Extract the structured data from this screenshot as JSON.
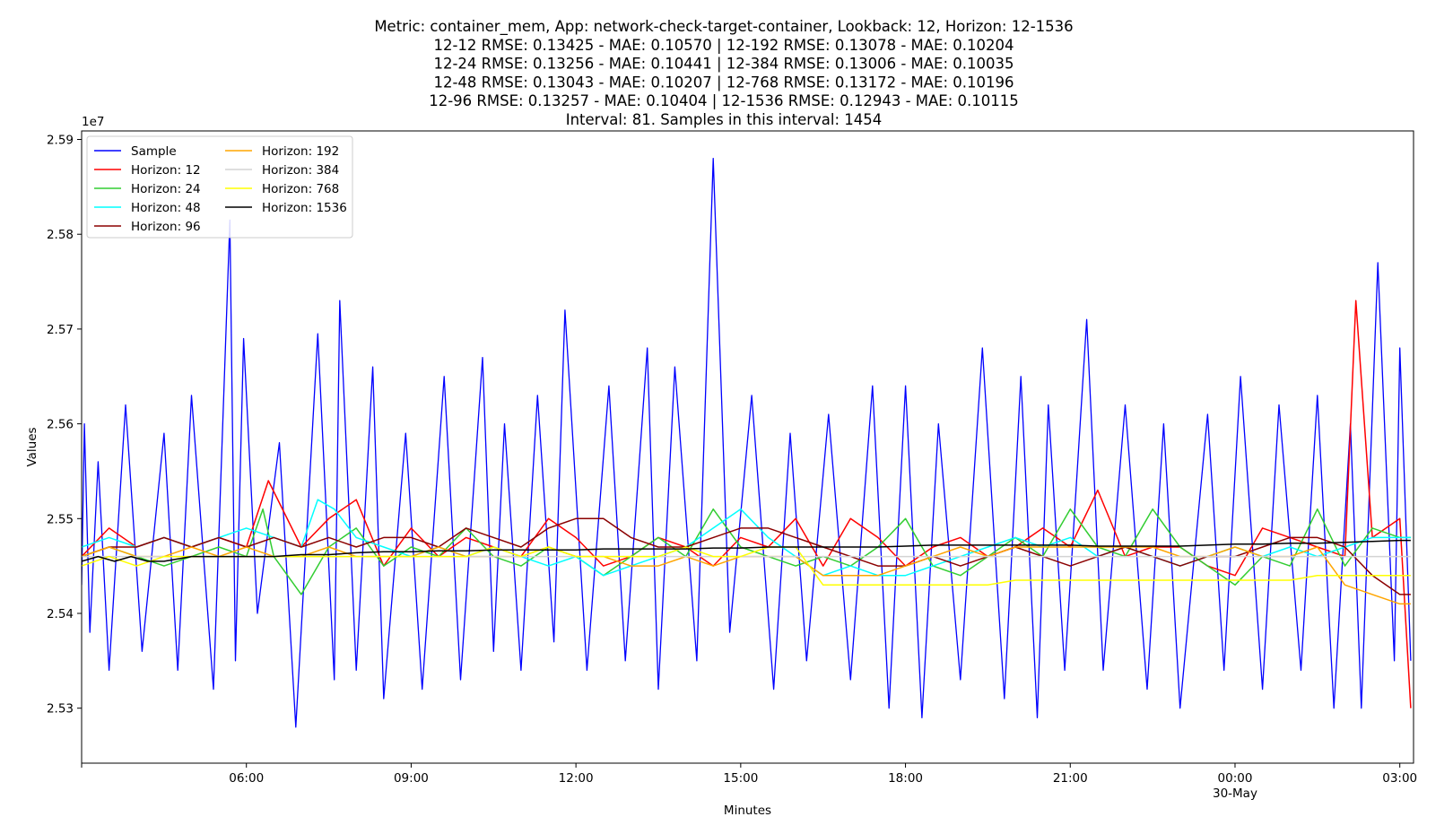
{
  "chart_data": {
    "type": "line",
    "title_lines": [
      "Metric: container_mem, App: network-check-target-container, Lookback: 12, Horizon: 12-1536",
      "12-12 RMSE: 0.13425 - MAE: 0.10570 | 12-192 RMSE: 0.13078 - MAE: 0.10204",
      "12-24 RMSE: 0.13256 - MAE: 0.10441 | 12-384 RMSE: 0.13006 - MAE: 0.10035",
      "12-48 RMSE: 0.13043 - MAE: 0.10207 | 12-768 RMSE: 0.13172 - MAE: 0.10196",
      "12-96 RMSE: 0.13257 - MAE: 0.10404 | 12-1536 RMSE: 0.12943 - MAE: 0.10115",
      "Interval: 81. Samples in this interval: 1454"
    ],
    "xlabel": "Minutes",
    "ylabel": "Values",
    "y_offset_label": "1e7",
    "x_unit": "hours since 2024-05-29 00:00 (dates axis)",
    "xlim": [
      3.0,
      27.25
    ],
    "ylim": [
      2.5242,
      2.5909
    ],
    "grid": false,
    "legend_position": "upper-left",
    "x_ticks": [
      {
        "value": 3.0,
        "label": ""
      },
      {
        "value": 6.0,
        "label": "06:00"
      },
      {
        "value": 9.0,
        "label": "09:00"
      },
      {
        "value": 12.0,
        "label": "12:00"
      },
      {
        "value": 15.0,
        "label": "15:00"
      },
      {
        "value": 18.0,
        "label": "18:00"
      },
      {
        "value": 21.0,
        "label": "21:00"
      },
      {
        "value": 24.0,
        "label": "00:00"
      },
      {
        "value": 27.0,
        "label": "03:00"
      }
    ],
    "x_date_label": {
      "value": 24.0,
      "label": "30-May"
    },
    "y_ticks": [
      {
        "value": 2.53,
        "label": "2.53"
      },
      {
        "value": 2.54,
        "label": "2.54"
      },
      {
        "value": 2.55,
        "label": "2.55"
      },
      {
        "value": 2.56,
        "label": "2.56"
      },
      {
        "value": 2.57,
        "label": "2.57"
      },
      {
        "value": 2.58,
        "label": "2.58"
      },
      {
        "value": 2.59,
        "label": "2.59"
      }
    ],
    "series": [
      {
        "name": "Sample",
        "color": "#0000ff",
        "x": [
          3.0,
          3.05,
          3.15,
          3.3,
          3.5,
          3.8,
          4.1,
          4.5,
          4.75,
          5.0,
          5.4,
          5.7,
          5.8,
          5.95,
          6.2,
          6.6,
          6.9,
          7.3,
          7.6,
          7.7,
          8.0,
          8.3,
          8.5,
          8.9,
          9.2,
          9.6,
          9.9,
          10.3,
          10.5,
          10.7,
          11.0,
          11.3,
          11.6,
          11.8,
          12.2,
          12.6,
          12.9,
          13.3,
          13.5,
          13.8,
          14.2,
          14.5,
          14.8,
          15.2,
          15.6,
          15.9,
          16.2,
          16.6,
          17.0,
          17.4,
          17.7,
          18.0,
          18.3,
          18.6,
          19.0,
          19.4,
          19.8,
          20.1,
          20.4,
          20.6,
          20.9,
          21.3,
          21.6,
          22.0,
          22.4,
          22.7,
          23.0,
          23.5,
          23.8,
          24.1,
          24.5,
          24.8,
          25.2,
          25.5,
          25.8,
          26.1,
          26.3,
          26.6,
          26.9,
          27.0,
          27.2
        ],
        "y": [
          2.543,
          2.56,
          2.538,
          2.556,
          2.534,
          2.562,
          2.536,
          2.559,
          2.534,
          2.563,
          2.532,
          2.5815,
          2.535,
          2.569,
          2.54,
          2.558,
          2.528,
          2.5695,
          2.533,
          2.573,
          2.534,
          2.566,
          2.531,
          2.559,
          2.532,
          2.565,
          2.533,
          2.567,
          2.536,
          2.56,
          2.534,
          2.563,
          2.537,
          2.572,
          2.534,
          2.564,
          2.535,
          2.568,
          2.532,
          2.566,
          2.535,
          2.588,
          2.538,
          2.563,
          2.532,
          2.559,
          2.535,
          2.561,
          2.533,
          2.564,
          2.53,
          2.564,
          2.529,
          2.56,
          2.533,
          2.568,
          2.531,
          2.565,
          2.529,
          2.562,
          2.534,
          2.571,
          2.534,
          2.562,
          2.532,
          2.56,
          2.53,
          2.561,
          2.534,
          2.565,
          2.532,
          2.562,
          2.534,
          2.563,
          2.53,
          2.56,
          2.53,
          2.577,
          2.535,
          2.568,
          2.535
        ]
      },
      {
        "name": "Horizon: 12",
        "color": "#ff0000",
        "x": [
          3.0,
          3.5,
          4.0,
          4.5,
          5.0,
          5.5,
          6.0,
          6.4,
          7.0,
          7.5,
          8.0,
          8.5,
          9.0,
          9.5,
          10.0,
          10.5,
          11.0,
          11.5,
          12.0,
          12.5,
          13.0,
          13.5,
          14.0,
          14.5,
          15.0,
          15.5,
          16.0,
          16.5,
          17.0,
          17.5,
          18.0,
          18.5,
          19.0,
          19.5,
          20.0,
          20.5,
          21.0,
          21.5,
          22.0,
          22.5,
          23.0,
          23.5,
          24.0,
          24.5,
          25.0,
          25.5,
          26.0,
          26.2,
          26.5,
          27.0,
          27.2
        ],
        "y": [
          2.546,
          2.549,
          2.547,
          2.548,
          2.547,
          2.548,
          2.547,
          2.554,
          2.547,
          2.55,
          2.552,
          2.545,
          2.549,
          2.546,
          2.548,
          2.547,
          2.546,
          2.55,
          2.548,
          2.545,
          2.546,
          2.548,
          2.547,
          2.545,
          2.548,
          2.547,
          2.55,
          2.545,
          2.55,
          2.548,
          2.545,
          2.547,
          2.548,
          2.546,
          2.547,
          2.549,
          2.547,
          2.553,
          2.546,
          2.547,
          2.547,
          2.545,
          2.544,
          2.549,
          2.548,
          2.547,
          2.546,
          2.573,
          2.548,
          2.55,
          2.53
        ]
      },
      {
        "name": "Horizon: 24",
        "color": "#32cd32",
        "x": [
          3.0,
          3.5,
          4.0,
          4.5,
          5.0,
          5.5,
          6.0,
          6.3,
          6.5,
          7.0,
          7.5,
          8.0,
          8.5,
          9.0,
          9.5,
          10.0,
          10.5,
          11.0,
          11.5,
          12.0,
          12.5,
          13.0,
          13.5,
          14.0,
          14.5,
          15.0,
          15.5,
          16.0,
          16.5,
          17.0,
          17.5,
          18.0,
          18.5,
          19.0,
          19.5,
          20.0,
          20.5,
          21.0,
          21.5,
          22.0,
          22.5,
          23.0,
          23.5,
          24.0,
          24.5,
          25.0,
          25.5,
          26.0,
          26.5,
          27.0,
          27.2
        ],
        "y": [
          2.546,
          2.547,
          2.546,
          2.545,
          2.546,
          2.547,
          2.546,
          2.551,
          2.546,
          2.542,
          2.547,
          2.549,
          2.545,
          2.547,
          2.546,
          2.549,
          2.546,
          2.545,
          2.547,
          2.546,
          2.544,
          2.546,
          2.548,
          2.546,
          2.551,
          2.547,
          2.546,
          2.545,
          2.546,
          2.545,
          2.547,
          2.55,
          2.545,
          2.544,
          2.546,
          2.548,
          2.546,
          2.551,
          2.547,
          2.546,
          2.551,
          2.547,
          2.545,
          2.543,
          2.546,
          2.545,
          2.551,
          2.545,
          2.549,
          2.548,
          2.548
        ]
      },
      {
        "name": "Horizon: 48",
        "color": "#00ffff",
        "x": [
          3.0,
          3.5,
          4.0,
          4.5,
          5.0,
          5.5,
          6.0,
          6.5,
          7.0,
          7.3,
          7.6,
          8.0,
          8.5,
          9.0,
          9.5,
          10.0,
          10.5,
          11.0,
          11.5,
          12.0,
          12.5,
          13.0,
          13.5,
          14.0,
          14.5,
          15.0,
          15.5,
          16.0,
          16.5,
          17.0,
          17.5,
          18.0,
          18.5,
          19.0,
          19.5,
          20.0,
          20.5,
          21.0,
          21.5,
          22.0,
          22.5,
          23.0,
          23.5,
          24.0,
          24.5,
          25.0,
          25.5,
          26.0,
          26.5,
          27.0,
          27.2
        ],
        "y": [
          2.547,
          2.548,
          2.547,
          2.548,
          2.547,
          2.548,
          2.549,
          2.548,
          2.547,
          2.552,
          2.551,
          2.548,
          2.547,
          2.546,
          2.547,
          2.546,
          2.547,
          2.546,
          2.545,
          2.546,
          2.544,
          2.545,
          2.546,
          2.547,
          2.549,
          2.551,
          2.548,
          2.546,
          2.544,
          2.545,
          2.544,
          2.544,
          2.545,
          2.546,
          2.547,
          2.548,
          2.547,
          2.548,
          2.546,
          2.547,
          2.546,
          2.545,
          2.546,
          2.547,
          2.546,
          2.547,
          2.546,
          2.547,
          2.548,
          2.548,
          2.548
        ]
      },
      {
        "name": "Horizon: 96",
        "color": "#8b0000",
        "x": [
          3.0,
          3.5,
          4.0,
          4.5,
          5.0,
          5.5,
          6.0,
          6.5,
          7.0,
          7.5,
          8.0,
          8.5,
          9.0,
          9.5,
          10.0,
          10.5,
          11.0,
          11.5,
          12.0,
          12.5,
          13.0,
          13.5,
          14.0,
          14.5,
          15.0,
          15.5,
          16.0,
          16.5,
          17.0,
          17.5,
          18.0,
          18.5,
          19.0,
          19.5,
          20.0,
          20.5,
          21.0,
          21.5,
          22.0,
          22.5,
          23.0,
          23.5,
          24.0,
          24.5,
          25.0,
          25.5,
          26.0,
          26.5,
          27.0,
          27.2
        ],
        "y": [
          2.546,
          2.547,
          2.547,
          2.548,
          2.547,
          2.548,
          2.547,
          2.548,
          2.547,
          2.548,
          2.547,
          2.548,
          2.548,
          2.547,
          2.549,
          2.548,
          2.547,
          2.549,
          2.55,
          2.55,
          2.548,
          2.547,
          2.547,
          2.548,
          2.549,
          2.549,
          2.548,
          2.547,
          2.546,
          2.545,
          2.545,
          2.546,
          2.545,
          2.546,
          2.547,
          2.546,
          2.545,
          2.546,
          2.547,
          2.546,
          2.545,
          2.546,
          2.546,
          2.547,
          2.548,
          2.548,
          2.547,
          2.544,
          2.542,
          2.542
        ]
      },
      {
        "name": "Horizon: 192",
        "color": "#ffa500",
        "x": [
          3.0,
          3.5,
          4.0,
          4.5,
          5.0,
          5.5,
          6.0,
          6.5,
          7.0,
          7.5,
          8.0,
          8.5,
          9.0,
          9.5,
          10.0,
          10.5,
          11.0,
          11.5,
          12.0,
          12.5,
          13.0,
          13.5,
          14.0,
          14.5,
          15.0,
          15.5,
          16.0,
          16.5,
          17.0,
          17.5,
          18.0,
          18.5,
          19.0,
          19.5,
          20.0,
          20.5,
          21.0,
          21.5,
          22.0,
          22.5,
          23.0,
          23.5,
          24.0,
          24.5,
          25.0,
          25.5,
          26.0,
          26.5,
          27.0,
          27.2
        ],
        "y": [
          2.546,
          2.547,
          2.546,
          2.546,
          2.547,
          2.546,
          2.547,
          2.546,
          2.546,
          2.547,
          2.546,
          2.546,
          2.546,
          2.547,
          2.546,
          2.546,
          2.546,
          2.547,
          2.546,
          2.546,
          2.545,
          2.545,
          2.546,
          2.545,
          2.546,
          2.546,
          2.546,
          2.544,
          2.544,
          2.544,
          2.545,
          2.546,
          2.547,
          2.546,
          2.547,
          2.547,
          2.547,
          2.547,
          2.547,
          2.547,
          2.546,
          2.546,
          2.547,
          2.546,
          2.546,
          2.547,
          2.543,
          2.542,
          2.541,
          2.541
        ]
      },
      {
        "name": "Horizon: 384",
        "color": "#d3d3d3",
        "x": [
          3.0,
          3.5,
          4.0,
          4.5,
          5.0,
          5.5,
          6.0,
          6.5,
          7.0,
          7.5,
          8.0,
          8.5,
          9.0,
          9.5,
          10.0,
          10.5,
          11.0,
          11.5,
          12.0,
          12.5,
          13.0,
          13.5,
          14.0,
          14.5,
          15.0,
          15.5,
          16.0,
          16.5,
          17.0,
          17.5,
          18.0,
          18.5,
          19.0,
          19.5,
          20.0,
          20.5,
          21.0,
          21.5,
          22.0,
          22.5,
          23.0,
          23.5,
          24.0,
          24.5,
          25.0,
          25.5,
          26.0,
          26.5,
          27.0,
          27.2
        ],
        "y": [
          2.546,
          2.546,
          2.546,
          2.546,
          2.546,
          2.546,
          2.546,
          2.546,
          2.546,
          2.546,
          2.546,
          2.546,
          2.546,
          2.546,
          2.546,
          2.546,
          2.546,
          2.546,
          2.546,
          2.546,
          2.546,
          2.546,
          2.546,
          2.546,
          2.546,
          2.546,
          2.546,
          2.546,
          2.546,
          2.546,
          2.546,
          2.546,
          2.546,
          2.546,
          2.546,
          2.546,
          2.546,
          2.546,
          2.546,
          2.546,
          2.546,
          2.546,
          2.546,
          2.546,
          2.546,
          2.546,
          2.546,
          2.546,
          2.546,
          2.546
        ]
      },
      {
        "name": "Horizon: 768",
        "color": "#ffff00",
        "x": [
          3.0,
          3.5,
          4.0,
          4.5,
          5.0,
          5.5,
          6.0,
          6.5,
          7.0,
          7.5,
          8.0,
          8.5,
          9.0,
          9.5,
          10.0,
          10.5,
          11.0,
          11.5,
          12.0,
          12.5,
          13.0,
          13.5,
          14.0,
          14.5,
          15.0,
          15.5,
          16.0,
          16.5,
          17.0,
          17.5,
          18.0,
          18.5,
          19.0,
          19.5,
          20.0,
          20.5,
          21.0,
          21.5,
          22.0,
          22.5,
          23.0,
          23.5,
          24.0,
          24.5,
          25.0,
          25.5,
          26.0,
          26.5,
          27.0,
          27.2
        ],
        "y": [
          2.545,
          2.546,
          2.545,
          2.546,
          2.546,
          2.546,
          2.546,
          2.546,
          2.546,
          2.546,
          2.546,
          2.546,
          2.546,
          2.546,
          2.546,
          2.547,
          2.546,
          2.547,
          2.546,
          2.546,
          2.546,
          2.546,
          2.547,
          2.546,
          2.546,
          2.547,
          2.547,
          2.543,
          2.543,
          2.543,
          2.543,
          2.543,
          2.543,
          2.543,
          2.5435,
          2.5435,
          2.5435,
          2.5435,
          2.5435,
          2.5435,
          2.5435,
          2.5435,
          2.5435,
          2.5435,
          2.5435,
          2.544,
          2.544,
          2.544,
          2.544,
          2.544
        ]
      },
      {
        "name": "Horizon: 1536",
        "color": "#000000",
        "x": [
          3.0,
          3.3,
          3.6,
          3.9,
          4.2,
          4.5,
          5.0,
          5.5,
          6.0,
          6.5,
          7.0,
          7.5,
          8.0,
          8.5,
          9.0,
          9.5,
          10.0,
          10.5,
          11.0,
          11.5,
          12.0,
          12.5,
          13.0,
          13.5,
          14.0,
          14.5,
          15.0,
          15.5,
          16.0,
          16.5,
          17.0,
          17.5,
          18.0,
          18.5,
          19.0,
          19.5,
          20.0,
          20.5,
          21.0,
          21.5,
          22.0,
          22.5,
          23.0,
          23.5,
          24.0,
          24.5,
          25.0,
          25.5,
          26.0,
          26.5,
          27.0,
          27.2
        ],
        "y": [
          2.5455,
          2.546,
          2.5455,
          2.546,
          2.5455,
          2.5455,
          2.546,
          2.546,
          2.546,
          2.546,
          2.5462,
          2.5462,
          2.5464,
          2.5465,
          2.5465,
          2.5466,
          2.5466,
          2.5467,
          2.5467,
          2.5467,
          2.5467,
          2.5468,
          2.5468,
          2.5468,
          2.5468,
          2.5469,
          2.5469,
          2.547,
          2.547,
          2.547,
          2.547,
          2.547,
          2.5471,
          2.5472,
          2.5472,
          2.5472,
          2.5472,
          2.5472,
          2.5472,
          2.5471,
          2.5471,
          2.5471,
          2.5471,
          2.5472,
          2.5473,
          2.5473,
          2.5474,
          2.5474,
          2.5475,
          2.5476,
          2.5477,
          2.5477
        ]
      }
    ]
  }
}
